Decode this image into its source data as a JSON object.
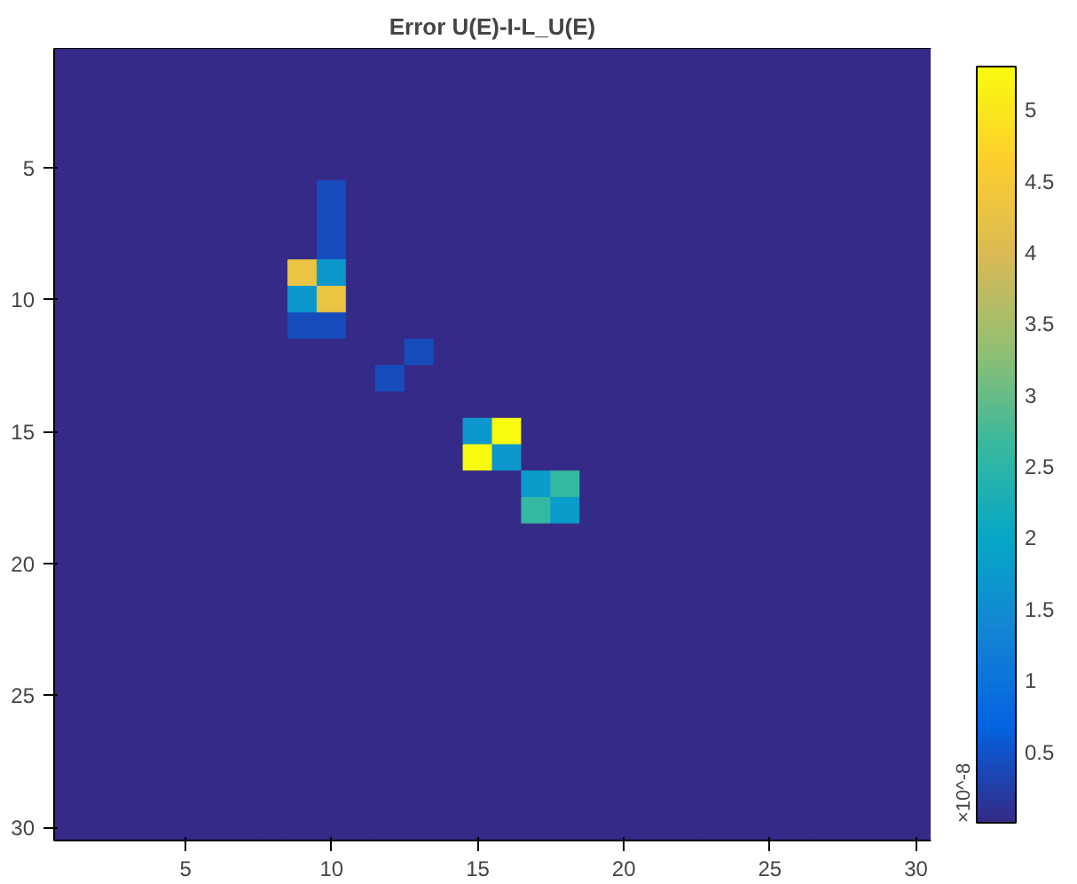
{
  "chart_data": {
    "type": "heatmap",
    "title": "Error U(E)-I-L_U(E)",
    "categories": [
      null,
      null,
      null,
      null,
      "5",
      null,
      null,
      null,
      null,
      "10",
      null,
      null,
      null,
      null,
      "15",
      null,
      null,
      null,
      null,
      "20",
      null,
      null,
      null,
      null,
      "25",
      null,
      null,
      null,
      null,
      "30"
    ],
    "y_categories": [
      null,
      null,
      null,
      null,
      "5",
      null,
      null,
      null,
      null,
      "10",
      null,
      null,
      null,
      null,
      "15",
      null,
      null,
      null,
      null,
      "20",
      null,
      null,
      null,
      null,
      "25",
      null,
      null,
      null,
      null,
      "30"
    ],
    "cells": [
      [
        0,
        0,
        0,
        0,
        0,
        0,
        0,
        0,
        0,
        0,
        0,
        0,
        0,
        0,
        0,
        0,
        0,
        0,
        0,
        0,
        0,
        0,
        0,
        0,
        0,
        0,
        0,
        0,
        0,
        0
      ],
      [
        0,
        0,
        0,
        0,
        0,
        0,
        0,
        0,
        0,
        0,
        0,
        0,
        0,
        0,
        0,
        0,
        0,
        0,
        0,
        0,
        0,
        0,
        0,
        0,
        0,
        0,
        0,
        0,
        0,
        0
      ],
      [
        0,
        0,
        0,
        0,
        0,
        0,
        0,
        0,
        0,
        0,
        0,
        0,
        0,
        0,
        0,
        0,
        0,
        0,
        0,
        0,
        0,
        0,
        0,
        0,
        0,
        0,
        0,
        0,
        0,
        0
      ],
      [
        0,
        0,
        0,
        0,
        0,
        0,
        0,
        0,
        0,
        0,
        0,
        0,
        0,
        0,
        0,
        0,
        0,
        0,
        0,
        0,
        0,
        0,
        0,
        0,
        0,
        0,
        0,
        0,
        0,
        0
      ],
      [
        0,
        0,
        0,
        0,
        0,
        0,
        0,
        0,
        0,
        0,
        0,
        0,
        0,
        0,
        0,
        0,
        0,
        0,
        0,
        0,
        0,
        0,
        0,
        0,
        0,
        0,
        0,
        0,
        0,
        0
      ],
      [
        0,
        0,
        0,
        0,
        0,
        0,
        0,
        0,
        0,
        0.4,
        0,
        0,
        0,
        0,
        0,
        0,
        0,
        0,
        0,
        0,
        0,
        0,
        0,
        0,
        0,
        0,
        0,
        0,
        0,
        0
      ],
      [
        0,
        0,
        0,
        0,
        0,
        0,
        0,
        0,
        0,
        0.4,
        0,
        0,
        0,
        0,
        0,
        0,
        0,
        0,
        0,
        0,
        0,
        0,
        0,
        0,
        0,
        0,
        0,
        0,
        0,
        0
      ],
      [
        0,
        0,
        0,
        0,
        0,
        0,
        0,
        0,
        0,
        0.4,
        0,
        0,
        0,
        0,
        0,
        0,
        0,
        0,
        0,
        0,
        0,
        0,
        0,
        0,
        0,
        0,
        0,
        0,
        0,
        0
      ],
      [
        0,
        0,
        0,
        0,
        0,
        0,
        0,
        0,
        4.3,
        1.7,
        0,
        0,
        0,
        0,
        0,
        0,
        0,
        0,
        0,
        0,
        0,
        0,
        0,
        0,
        0,
        0,
        0,
        0,
        0,
        0
      ],
      [
        0,
        0,
        0,
        0,
        0,
        0,
        0,
        0,
        1.7,
        4.3,
        0,
        0,
        0,
        0,
        0,
        0,
        0,
        0,
        0,
        0,
        0,
        0,
        0,
        0,
        0,
        0,
        0,
        0,
        0,
        0
      ],
      [
        0,
        0,
        0,
        0,
        0,
        0,
        0,
        0,
        0.4,
        0.4,
        0,
        0,
        0,
        0,
        0,
        0,
        0,
        0,
        0,
        0,
        0,
        0,
        0,
        0,
        0,
        0,
        0,
        0,
        0,
        0
      ],
      [
        0,
        0,
        0,
        0,
        0,
        0,
        0,
        0,
        0,
        0,
        0,
        0,
        0.4,
        0,
        0,
        0,
        0,
        0,
        0,
        0,
        0,
        0,
        0,
        0,
        0,
        0,
        0,
        0,
        0,
        0
      ],
      [
        0,
        0,
        0,
        0,
        0,
        0,
        0,
        0,
        0,
        0,
        0,
        0.4,
        0,
        0,
        0,
        0,
        0,
        0,
        0,
        0,
        0,
        0,
        0,
        0,
        0,
        0,
        0,
        0,
        0,
        0
      ],
      [
        0,
        0,
        0,
        0,
        0,
        0,
        0,
        0,
        0,
        0,
        0,
        0,
        0,
        0,
        0,
        0,
        0,
        0,
        0,
        0,
        0,
        0,
        0,
        0,
        0,
        0,
        0,
        0,
        0,
        0
      ],
      [
        0,
        0,
        0,
        0,
        0,
        0,
        0,
        0,
        0,
        0,
        0,
        0,
        0,
        0,
        1.7,
        5.3,
        0,
        0,
        0,
        0,
        0,
        0,
        0,
        0,
        0,
        0,
        0,
        0,
        0,
        0
      ],
      [
        0,
        0,
        0,
        0,
        0,
        0,
        0,
        0,
        0,
        0,
        0,
        0,
        0,
        0,
        5.3,
        1.7,
        0,
        0,
        0,
        0,
        0,
        0,
        0,
        0,
        0,
        0,
        0,
        0,
        0,
        0
      ],
      [
        0,
        0,
        0,
        0,
        0,
        0,
        0,
        0,
        0,
        0,
        0,
        0,
        0,
        0,
        0,
        0,
        1.8,
        2.6,
        0,
        0,
        0,
        0,
        0,
        0,
        0,
        0,
        0,
        0,
        0,
        0
      ],
      [
        0,
        0,
        0,
        0,
        0,
        0,
        0,
        0,
        0,
        0,
        0,
        0,
        0,
        0,
        0,
        0,
        2.6,
        1.8,
        0,
        0,
        0,
        0,
        0,
        0,
        0,
        0,
        0,
        0,
        0,
        0
      ],
      [
        0,
        0,
        0,
        0,
        0,
        0,
        0,
        0,
        0,
        0,
        0,
        0,
        0,
        0,
        0,
        0,
        0,
        0,
        0,
        0,
        0,
        0,
        0,
        0,
        0,
        0,
        0,
        0,
        0,
        0
      ],
      [
        0,
        0,
        0,
        0,
        0,
        0,
        0,
        0,
        0,
        0,
        0,
        0,
        0,
        0,
        0,
        0,
        0,
        0,
        0,
        0,
        0,
        0,
        0,
        0,
        0,
        0,
        0,
        0,
        0,
        0
      ],
      [
        0,
        0,
        0,
        0,
        0,
        0,
        0,
        0,
        0,
        0,
        0,
        0,
        0,
        0,
        0,
        0,
        0,
        0,
        0,
        0,
        0,
        0,
        0,
        0,
        0,
        0,
        0,
        0,
        0,
        0
      ],
      [
        0,
        0,
        0,
        0,
        0,
        0,
        0,
        0,
        0,
        0,
        0,
        0,
        0,
        0,
        0,
        0,
        0,
        0,
        0,
        0,
        0,
        0,
        0,
        0,
        0,
        0,
        0,
        0,
        0,
        0
      ],
      [
        0,
        0,
        0,
        0,
        0,
        0,
        0,
        0,
        0,
        0,
        0,
        0,
        0,
        0,
        0,
        0,
        0,
        0,
        0,
        0,
        0,
        0,
        0,
        0,
        0,
        0,
        0,
        0,
        0,
        0
      ],
      [
        0,
        0,
        0,
        0,
        0,
        0,
        0,
        0,
        0,
        0,
        0,
        0,
        0,
        0,
        0,
        0,
        0,
        0,
        0,
        0,
        0,
        0,
        0,
        0,
        0,
        0,
        0,
        0,
        0,
        0
      ],
      [
        0,
        0,
        0,
        0,
        0,
        0,
        0,
        0,
        0,
        0,
        0,
        0,
        0,
        0,
        0,
        0,
        0,
        0,
        0,
        0,
        0,
        0,
        0,
        0,
        0,
        0,
        0,
        0,
        0,
        0
      ],
      [
        0,
        0,
        0,
        0,
        0,
        0,
        0,
        0,
        0,
        0,
        0,
        0,
        0,
        0,
        0,
        0,
        0,
        0,
        0,
        0,
        0,
        0,
        0,
        0,
        0,
        0,
        0,
        0,
        0,
        0
      ],
      [
        0,
        0,
        0,
        0,
        0,
        0,
        0,
        0,
        0,
        0,
        0,
        0,
        0,
        0,
        0,
        0,
        0,
        0,
        0,
        0,
        0,
        0,
        0,
        0,
        0,
        0,
        0,
        0,
        0,
        0
      ],
      [
        0,
        0,
        0,
        0,
        0,
        0,
        0,
        0,
        0,
        0,
        0,
        0,
        0,
        0,
        0,
        0,
        0,
        0,
        0,
        0,
        0,
        0,
        0,
        0,
        0,
        0,
        0,
        0,
        0,
        0
      ],
      [
        0,
        0,
        0,
        0,
        0,
        0,
        0,
        0,
        0,
        0,
        0,
        0,
        0,
        0,
        0,
        0,
        0,
        0,
        0,
        0,
        0,
        0,
        0,
        0,
        0,
        0,
        0,
        0,
        0,
        0
      ],
      [
        0,
        0,
        0,
        0,
        0,
        0,
        0,
        0,
        0,
        0,
        0,
        0,
        0,
        0,
        0,
        0,
        0,
        0,
        0,
        0,
        0,
        0,
        0,
        0,
        0,
        0,
        0,
        0,
        0,
        0
      ]
    ],
    "clim": [
      0,
      5.3
    ],
    "cticks": [
      0.5,
      1,
      1.5,
      2,
      2.5,
      3,
      3.5,
      4,
      4.5,
      5
    ],
    "clabel": "×10^-8"
  }
}
